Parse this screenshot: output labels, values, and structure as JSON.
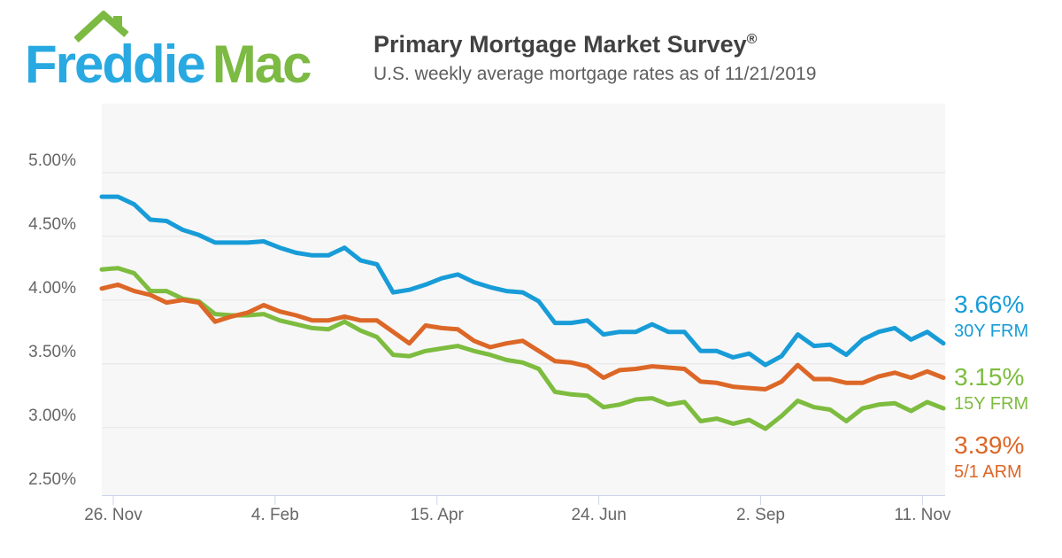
{
  "header": {
    "logo": {
      "word1": "Freddie",
      "word2": "Mac",
      "roof_icon": "house-roof-with-chimney",
      "blue": "#29A9E1",
      "green": "#7CBA43"
    },
    "title": "Primary Mortgage Market Survey",
    "title_registered_mark": "®",
    "subtitle": "U.S. weekly average mortgage rates as of 11/21/2019"
  },
  "chart_data": {
    "type": "line",
    "title": "Primary Mortgage Market Survey®",
    "subtitle": "U.S. weekly average mortgage rates as of 11/21/2019",
    "xlabel": "",
    "ylabel": "",
    "grid": "horizontal-only",
    "legend_position": "right-end-labels",
    "plot_bg": "#F7F7F7",
    "gridline_color": "#E6E6E6",
    "axis_color": "#CCD6EB",
    "ylim": [
      2.47,
      5.54
    ],
    "y_ticks": [
      "5.00%",
      "4.50%",
      "4.00%",
      "3.50%",
      "3.00%",
      "2.50%"
    ],
    "y_tick_values": [
      5.0,
      4.5,
      4.0,
      3.5,
      3.0,
      2.5
    ],
    "y_gridline_values": [
      5.0,
      4.5,
      4.0,
      3.5,
      3.0
    ],
    "x_tick_labels": [
      "26. Nov",
      "4. Feb",
      "15. Apr",
      "24. Jun",
      "2. Sep",
      "11. Nov"
    ],
    "x_tick_weeks": [
      0.71,
      10.71,
      20.71,
      30.71,
      40.71,
      50.71
    ],
    "n_points": 53,
    "series": [
      {
        "name": "30Y FRM",
        "end_value": "3.66%",
        "color": "#189CD8",
        "values": [
          4.81,
          4.81,
          4.75,
          4.63,
          4.62,
          4.55,
          4.51,
          4.45,
          4.45,
          4.45,
          4.46,
          4.41,
          4.37,
          4.35,
          4.35,
          4.41,
          4.31,
          4.28,
          4.06,
          4.08,
          4.12,
          4.17,
          4.2,
          4.14,
          4.1,
          4.07,
          4.06,
          3.99,
          3.82,
          3.82,
          3.84,
          3.73,
          3.75,
          3.75,
          3.81,
          3.75,
          3.75,
          3.6,
          3.6,
          3.55,
          3.58,
          3.49,
          3.56,
          3.73,
          3.64,
          3.65,
          3.57,
          3.69,
          3.75,
          3.78,
          3.69,
          3.75,
          3.66
        ]
      },
      {
        "name": "15Y FRM",
        "end_value": "3.15%",
        "color": "#7DBC3F",
        "values": [
          4.24,
          4.25,
          4.21,
          4.07,
          4.07,
          4.01,
          3.99,
          3.89,
          3.88,
          3.88,
          3.89,
          3.84,
          3.81,
          3.78,
          3.77,
          3.83,
          3.76,
          3.71,
          3.57,
          3.56,
          3.6,
          3.62,
          3.64,
          3.6,
          3.57,
          3.53,
          3.51,
          3.46,
          3.28,
          3.26,
          3.25,
          3.16,
          3.18,
          3.22,
          3.23,
          3.18,
          3.2,
          3.05,
          3.07,
          3.03,
          3.06,
          2.99,
          3.09,
          3.21,
          3.16,
          3.14,
          3.05,
          3.15,
          3.18,
          3.19,
          3.13,
          3.2,
          3.15
        ]
      },
      {
        "name": "5/1 ARM",
        "end_value": "3.39%",
        "color": "#DC6727",
        "values": [
          4.09,
          4.12,
          4.07,
          4.04,
          3.98,
          4.0,
          3.98,
          3.83,
          3.87,
          3.9,
          3.96,
          3.91,
          3.88,
          3.84,
          3.84,
          3.87,
          3.84,
          3.84,
          3.75,
          3.66,
          3.8,
          3.78,
          3.77,
          3.68,
          3.63,
          3.66,
          3.68,
          3.6,
          3.52,
          3.51,
          3.48,
          3.39,
          3.45,
          3.46,
          3.48,
          3.47,
          3.46,
          3.36,
          3.35,
          3.32,
          3.31,
          3.3,
          3.36,
          3.49,
          3.38,
          3.38,
          3.35,
          3.35,
          3.4,
          3.43,
          3.39,
          3.44,
          3.39
        ]
      }
    ]
  }
}
